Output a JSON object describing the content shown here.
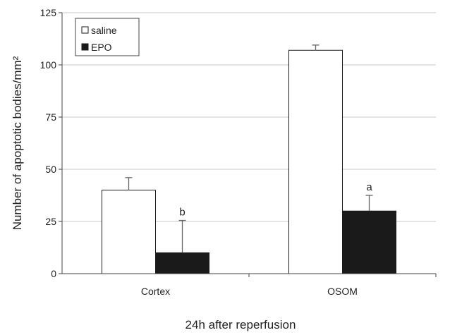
{
  "chart_data": {
    "type": "bar",
    "categories": [
      "Cortex",
      "OSOM"
    ],
    "series": [
      {
        "name": "saline",
        "values": [
          40,
          107
        ],
        "errors": [
          6,
          2.5
        ],
        "color": "#ffffff"
      },
      {
        "name": "EPO",
        "values": [
          10,
          30
        ],
        "errors": [
          15.5,
          7.5
        ],
        "color": "#1a1a1a"
      }
    ],
    "annotations": [
      {
        "category": "Cortex",
        "series": "EPO",
        "text": "b"
      },
      {
        "category": "OSOM",
        "series": "EPO",
        "text": "a"
      }
    ],
    "xlabel": "24h after reperfusion",
    "ylabel": "Number of apoptotic bodies/mm²",
    "ylim": [
      0,
      125
    ],
    "yticks": [
      0,
      25,
      50,
      75,
      100,
      125
    ],
    "grid": true,
    "legend_position": "top-left"
  }
}
